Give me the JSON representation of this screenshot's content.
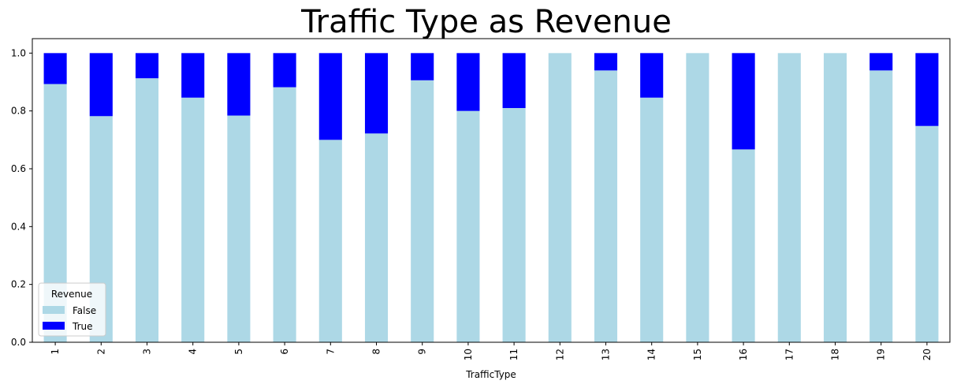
{
  "chart_data": {
    "type": "bar",
    "stacked": true,
    "title": "Traffic Type as Revenue",
    "xlabel": "TrafficType",
    "ylabel": "",
    "ylim": [
      0,
      1.05
    ],
    "yticks": [
      "0.0",
      "0.2",
      "0.4",
      "0.6",
      "0.8",
      "1.0"
    ],
    "grid": false,
    "categories": [
      "1",
      "2",
      "3",
      "4",
      "5",
      "6",
      "7",
      "8",
      "9",
      "10",
      "11",
      "12",
      "13",
      "14",
      "15",
      "16",
      "17",
      "18",
      "19",
      "20"
    ],
    "series": [
      {
        "name": "False",
        "color": "#add8e6",
        "values": [
          0.893,
          0.782,
          0.913,
          0.846,
          0.784,
          0.882,
          0.7,
          0.722,
          0.906,
          0.8,
          0.81,
          1.0,
          0.94,
          0.846,
          1.0,
          0.667,
          1.0,
          1.0,
          0.94,
          0.748
        ]
      },
      {
        "name": "True",
        "color": "#0000ff",
        "values": [
          0.107,
          0.218,
          0.087,
          0.154,
          0.216,
          0.118,
          0.3,
          0.278,
          0.094,
          0.2,
          0.19,
          0.0,
          0.06,
          0.154,
          0.0,
          0.333,
          0.0,
          0.0,
          0.06,
          0.252
        ]
      }
    ],
    "legend": {
      "title": "Revenue",
      "placement": "lower-left"
    }
  }
}
